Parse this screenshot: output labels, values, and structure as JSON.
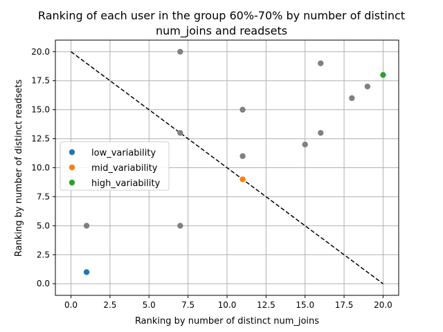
{
  "chart_data": {
    "type": "scatter",
    "title_line1": "Ranking of each user in the group 60%-70% by number of distinct",
    "title_line2": "num_joins and readsets",
    "xlabel": "Ranking by number of distinct num_joins",
    "ylabel": "Ranking by number of distinct readsets",
    "xlim": [
      -1,
      21
    ],
    "ylim": [
      -1,
      21
    ],
    "xticks": [
      0.0,
      2.5,
      5.0,
      7.5,
      10.0,
      12.5,
      15.0,
      17.5,
      20.0
    ],
    "yticks": [
      0.0,
      2.5,
      5.0,
      7.5,
      10.0,
      12.5,
      15.0,
      17.5,
      20.0
    ],
    "grid": true,
    "legend_position": "center-left",
    "background_points": {
      "color": "#808080",
      "points": [
        {
          "x": 7,
          "y": 20
        },
        {
          "x": 16,
          "y": 19
        },
        {
          "x": 19,
          "y": 17
        },
        {
          "x": 18,
          "y": 16
        },
        {
          "x": 11,
          "y": 15
        },
        {
          "x": 7,
          "y": 13
        },
        {
          "x": 16,
          "y": 13
        },
        {
          "x": 15,
          "y": 12
        },
        {
          "x": 11,
          "y": 11
        },
        {
          "x": 1,
          "y": 5
        },
        {
          "x": 7,
          "y": 5
        }
      ]
    },
    "series": [
      {
        "name": "low_variability",
        "color": "#1f77b4",
        "points": [
          {
            "x": 1,
            "y": 1
          }
        ]
      },
      {
        "name": "mid_variability",
        "color": "#ff7f0e",
        "points": [
          {
            "x": 11,
            "y": 9
          }
        ]
      },
      {
        "name": "high_variability",
        "color": "#2ca02c",
        "points": [
          {
            "x": 20,
            "y": 18
          }
        ]
      }
    ],
    "reference_line": {
      "from": {
        "x": 0,
        "y": 20
      },
      "to": {
        "x": 20,
        "y": 0
      },
      "style": "dashed",
      "color": "#000000"
    }
  }
}
